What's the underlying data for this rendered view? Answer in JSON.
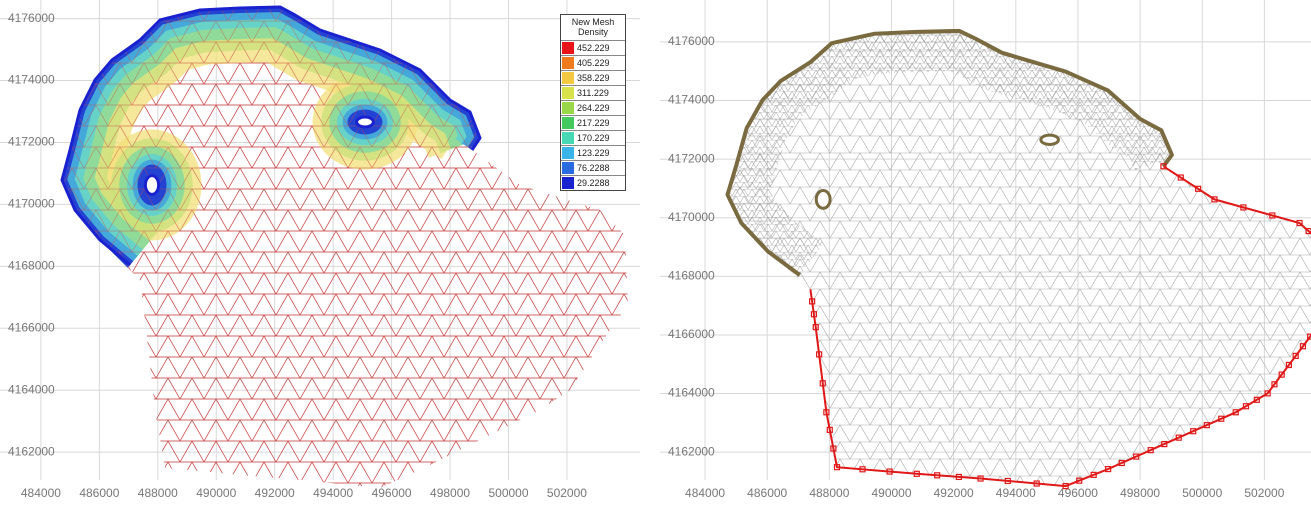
{
  "chart_data": [
    {
      "type": "mesh",
      "style": "density",
      "xlim": [
        482600,
        504500
      ],
      "ylim": [
        4161100,
        4176600
      ],
      "xticks": [
        484000,
        486000,
        488000,
        490000,
        492000,
        494000,
        496000,
        498000,
        500000,
        502000
      ],
      "yticks": [
        4162000,
        4164000,
        4166000,
        4168000,
        4170000,
        4172000,
        4174000,
        4176000
      ],
      "grid": true,
      "legend": {
        "title": "New Mesh Density",
        "values": [
          452.229,
          405.229,
          358.229,
          311.229,
          264.229,
          217.229,
          170.229,
          123.229,
          76.2288,
          29.2288
        ],
        "colors": [
          "#e8141a",
          "#f07a1e",
          "#f5c842",
          "#d8e24a",
          "#9ad84a",
          "#44c860",
          "#48d8b4",
          "#3ab4e8",
          "#2a6ae0",
          "#1a22d0"
        ]
      }
    },
    {
      "type": "mesh",
      "style": "boundary",
      "xlim": [
        482550,
        503500
      ],
      "ylim": [
        4161050,
        4177430
      ],
      "xticks": [
        484000,
        486000,
        488000,
        490000,
        492000,
        494000,
        496000,
        498000,
        500000,
        502000
      ],
      "yticks": [
        4162000,
        4164000,
        4166000,
        4168000,
        4170000,
        4172000,
        4174000,
        4176000
      ],
      "grid": true
    }
  ]
}
